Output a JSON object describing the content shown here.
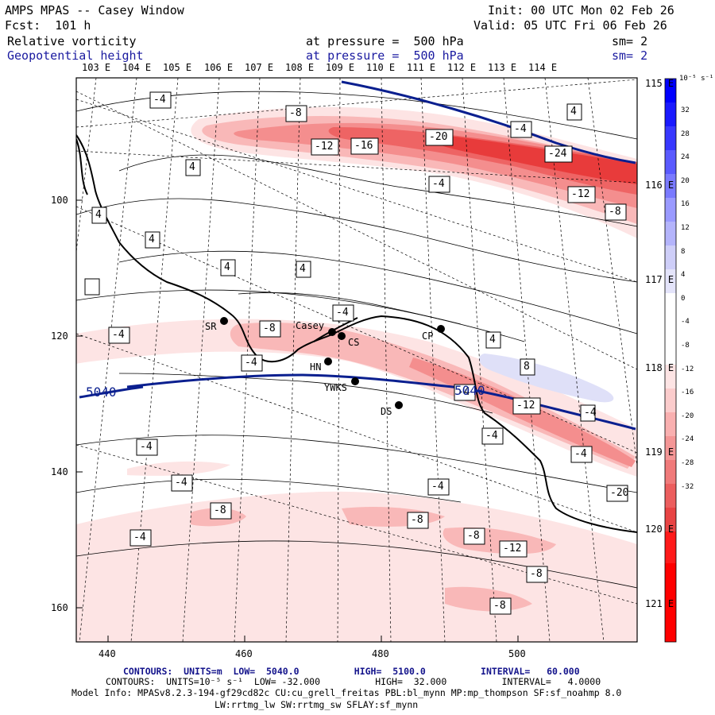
{
  "header": {
    "title": "AMPS MPAS -- Casey Window",
    "forecast": "Fcst:  101 h",
    "init": "Init: 00 UTC Mon 02 Feb 26",
    "valid": "Valid: 05 UTC Fri 06 Feb 26",
    "field1": {
      "name": "Relative vorticity",
      "level": "at pressure =  500 hPa",
      "smooth": "sm= 2"
    },
    "field2": {
      "name": "Geopotential height",
      "level": "at pressure =  500 hPa",
      "smooth": "sm= 2"
    }
  },
  "axes": {
    "x_ticks": [
      "440",
      "460",
      "480",
      "500"
    ],
    "y_ticks": [
      "100",
      "120",
      "140",
      "160"
    ],
    "top_lon_labels": [
      "103 E",
      "104 E",
      "105 E",
      "106 E",
      "107 E",
      "108 E",
      "109 E",
      "110 E",
      "111 E",
      "112 E",
      "113 E",
      "114 E"
    ],
    "right_lat_labels": [
      "115 E",
      "116 E",
      "117 E",
      "118 E",
      "119 E",
      "120 E",
      "121 E"
    ]
  },
  "colorbar": {
    "unit": "10⁻⁵ s⁻¹",
    "ticks": [
      "32",
      "28",
      "24",
      "20",
      "16",
      "12",
      "8",
      "4",
      "0",
      "-4",
      "-8",
      "-12",
      "-16",
      "-20",
      "-24",
      "-28",
      "-32"
    ]
  },
  "stations": [
    {
      "name": "SR"
    },
    {
      "name": "Casey"
    },
    {
      "name": "CS"
    },
    {
      "name": "CP"
    },
    {
      "name": "HN"
    },
    {
      "name": "YWKS"
    },
    {
      "name": "DS"
    }
  ],
  "contour_labels": {
    "height": [
      "5040",
      "5040"
    ],
    "vorticity": [
      "-4",
      "-8",
      "-12",
      "-16",
      "-20",
      "-24",
      "-12",
      "-8",
      "-4",
      "4",
      "4",
      "4",
      "4",
      "4",
      "-4",
      "-4",
      "-8",
      "-4",
      "-4",
      "-12",
      "8",
      "-4",
      "-4",
      "-4",
      "-4",
      "-8",
      "-4",
      "-4",
      "-8",
      "-4",
      "-8",
      "-12",
      "-8",
      "-8",
      "4",
      "4"
    ]
  },
  "footer": {
    "line1": "CONTOURS:  UNITS=m  LOW=  5040.0          HIGH=  5100.0          INTERVAL=   60.000",
    "line2": "CONTOURS:  UNITS=10⁻⁵ s⁻¹  LOW= -32.000          HIGH=  32.000          INTERVAL=   4.0000",
    "line3": "Model Info: MPASv8.2.3-194-gf29cd82c CU:cu_grell_freitas PBL:bl_mynn MP:mp_thompson SF:sf_noahmp 8.0",
    "line4": "LW:rrtmg_lw SW:rrtmg_sw SFLAY:sf_mynn"
  },
  "colors": {
    "height_contour": "#0a1f8f",
    "neg_light": "#fde4e4",
    "neg_mid": "#f9b8b8",
    "neg_strong": "#f07a7a",
    "neg_max": "#e83333",
    "pos_light": "#dfe0f8"
  }
}
